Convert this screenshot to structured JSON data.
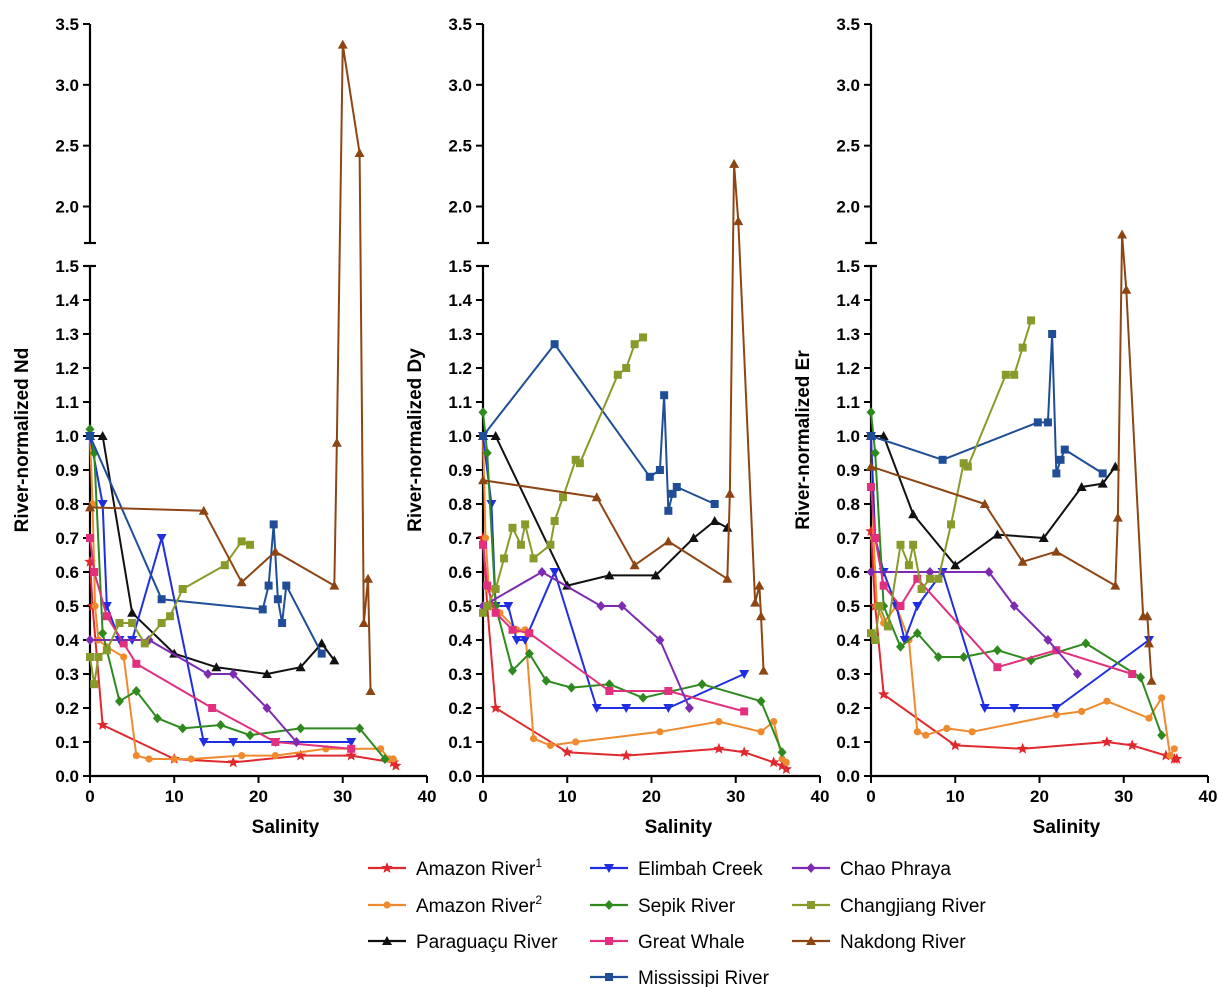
{
  "series_styles": [
    {
      "key": "amazon1",
      "color": "#e0292f",
      "marker": "star"
    },
    {
      "key": "amazon2",
      "color": "#ef8a2e",
      "marker": "circle"
    },
    {
      "key": "paraguacu",
      "color": "#111111",
      "marker": "triangle-up"
    },
    {
      "key": "elimbah",
      "color": "#1f2ee0",
      "marker": "triangle-down"
    },
    {
      "key": "sepik",
      "color": "#2e8a1e",
      "marker": "diamond"
    },
    {
      "key": "greatwhale",
      "color": "#e0307e",
      "marker": "square"
    },
    {
      "key": "mississippi",
      "color": "#1f4e96",
      "marker": "square"
    },
    {
      "key": "chaophraya",
      "color": "#7d2bb0",
      "marker": "diamond"
    },
    {
      "key": "changjiang",
      "color": "#8a9a2a",
      "marker": "square"
    },
    {
      "key": "nakdong",
      "color": "#8e4514",
      "marker": "triangle-up"
    }
  ],
  "legend": {
    "items": [
      {
        "key": "amazon1",
        "label": "Amazon River",
        "sup": "1"
      },
      {
        "key": "amazon2",
        "label": "Amazon River",
        "sup": "2"
      },
      {
        "key": "paraguacu",
        "label": "Paraguaçu River",
        "sup": ""
      },
      {
        "key": "elimbah",
        "label": "Elimbah Creek",
        "sup": ""
      },
      {
        "key": "sepik",
        "label": "Sepik River",
        "sup": ""
      },
      {
        "key": "greatwhale",
        "label": "Great Whale",
        "sup": ""
      },
      {
        "key": "mississippi",
        "label": "Mississipi River",
        "sup": ""
      },
      {
        "key": "chaophraya",
        "label": "Chao Phraya",
        "sup": ""
      },
      {
        "key": "changjiang",
        "label": "Changjiang River",
        "sup": ""
      },
      {
        "key": "nakdong",
        "label": "Nakdong River",
        "sup": ""
      }
    ]
  },
  "chart_data": [
    {
      "type": "line",
      "xlabel": "Salinity",
      "ylabel": "River-normalized Nd",
      "xlim": [
        0,
        40
      ],
      "xticks": [
        "0",
        "10",
        "20",
        "30",
        "40"
      ],
      "ylim": [
        0,
        3.5
      ],
      "axis_break": [
        1.5,
        1.7
      ],
      "yticks": [
        "0.0",
        "0.1",
        "0.2",
        "0.3",
        "0.4",
        "0.5",
        "0.6",
        "0.7",
        "0.8",
        "0.9",
        "1.0",
        "1.1",
        "1.2",
        "1.3",
        "1.4",
        "1.5",
        "2.0",
        "2.5",
        "3.0",
        "3.5"
      ],
      "series": [
        {
          "name": "Amazon River1",
          "x": [
            0,
            0.3,
            1.5,
            10,
            17,
            25,
            31,
            36,
            36.3
          ],
          "y": [
            0.63,
            0.5,
            0.15,
            0.05,
            0.04,
            0.06,
            0.06,
            0.04,
            0.03
          ]
        },
        {
          "name": "Amazon River2",
          "x": [
            0,
            0.3,
            0.6,
            1,
            2,
            4,
            5.5,
            7,
            10,
            12,
            18,
            22,
            28,
            34.5,
            35.5,
            36
          ],
          "y": [
            1.0,
            0.8,
            0.5,
            0.4,
            0.38,
            0.35,
            0.06,
            0.05,
            0.05,
            0.05,
            0.06,
            0.06,
            0.08,
            0.08,
            0.05,
            0.05
          ]
        },
        {
          "name": "Paraguaçu River",
          "x": [
            0,
            1.5,
            5,
            10,
            15,
            21,
            25,
            27.5,
            29
          ],
          "y": [
            1.0,
            1.0,
            0.48,
            0.36,
            0.32,
            0.3,
            0.32,
            0.39,
            0.34
          ]
        },
        {
          "name": "Elimbah Creek",
          "x": [
            0,
            1.5,
            2,
            3.5,
            5,
            8.5,
            13.5,
            17,
            22,
            31
          ],
          "y": [
            1.0,
            0.8,
            0.5,
            0.4,
            0.4,
            0.7,
            0.1,
            0.1,
            0.1,
            0.1
          ]
        },
        {
          "name": "Sepik River",
          "x": [
            0,
            0.5,
            1.5,
            3.5,
            5.5,
            8,
            11,
            15.5,
            19,
            25,
            32,
            35
          ],
          "y": [
            1.02,
            0.95,
            0.42,
            0.22,
            0.25,
            0.17,
            0.14,
            0.15,
            0.12,
            0.14,
            0.14,
            0.05
          ]
        },
        {
          "name": "Great Whale",
          "x": [
            0,
            0.5,
            2,
            4,
            5.5,
            14.5,
            22,
            31
          ],
          "y": [
            0.7,
            0.6,
            0.47,
            0.39,
            0.33,
            0.2,
            0.1,
            0.08
          ]
        },
        {
          "name": "Mississippi River",
          "x": [
            0,
            8.5,
            20.5,
            21.2,
            21.8,
            22.3,
            22.8,
            23.3,
            27.5
          ],
          "y": [
            1.0,
            0.52,
            0.49,
            0.56,
            0.74,
            0.52,
            0.45,
            0.56,
            0.36
          ]
        },
        {
          "name": "Chao Phraya",
          "x": [
            0,
            7,
            14,
            17,
            21,
            24.5
          ],
          "y": [
            0.4,
            0.4,
            0.3,
            0.3,
            0.2,
            0.1
          ]
        },
        {
          "name": "Changjiang River",
          "x": [
            0,
            0.5,
            1,
            2,
            3.5,
            5,
            6.5,
            8.5,
            9.5,
            11,
            16,
            18,
            19
          ],
          "y": [
            0.35,
            0.27,
            0.35,
            0.37,
            0.45,
            0.45,
            0.39,
            0.45,
            0.47,
            0.55,
            0.62,
            0.69,
            0.68
          ]
        },
        {
          "name": "Nakdong River",
          "x": [
            0,
            13.5,
            18,
            22,
            29,
            29.3,
            30,
            32,
            32.5,
            33,
            33.3
          ],
          "y": [
            0.79,
            0.78,
            0.57,
            0.66,
            0.56,
            0.98,
            3.33,
            2.44,
            0.45,
            0.58,
            0.25
          ]
        }
      ]
    },
    {
      "type": "line",
      "xlabel": "Salinity",
      "ylabel": "River-normalized Dy",
      "xlim": [
        0,
        40
      ],
      "xticks": [
        "0",
        "10",
        "20",
        "30",
        "40"
      ],
      "ylim": [
        0,
        3.5
      ],
      "axis_break": [
        1.5,
        1.7
      ],
      "yticks": [
        "0.0",
        "0.1",
        "0.2",
        "0.3",
        "0.4",
        "0.5",
        "0.6",
        "0.7",
        "0.8",
        "0.9",
        "1.0",
        "1.1",
        "1.2",
        "1.3",
        "1.4",
        "1.5",
        "2.0",
        "2.5",
        "3.0",
        "3.5"
      ],
      "series": [
        {
          "name": "Amazon River1",
          "x": [
            0,
            0.5,
            1.5,
            10,
            17,
            28,
            31,
            34.5,
            35.5,
            36
          ],
          "y": [
            0.7,
            0.5,
            0.2,
            0.07,
            0.06,
            0.08,
            0.07,
            0.04,
            0.03,
            0.02
          ]
        },
        {
          "name": "Amazon River2",
          "x": [
            0,
            0.3,
            0.7,
            1,
            2,
            4,
            5,
            6,
            8,
            11,
            21,
            28,
            33,
            34.5,
            35.5,
            36
          ],
          "y": [
            1.0,
            0.7,
            0.55,
            0.5,
            0.48,
            0.43,
            0.43,
            0.11,
            0.09,
            0.1,
            0.13,
            0.16,
            0.13,
            0.16,
            0.05,
            0.04
          ]
        },
        {
          "name": "Paraguaçu River",
          "x": [
            0,
            1.5,
            10,
            15,
            20.5,
            25,
            27.5,
            29
          ],
          "y": [
            1.0,
            1.0,
            0.56,
            0.59,
            0.59,
            0.7,
            0.75,
            0.73
          ]
        },
        {
          "name": "Elimbah Creek",
          "x": [
            0,
            1,
            1.5,
            3,
            4,
            5,
            8.5,
            13.5,
            17,
            22,
            31
          ],
          "y": [
            1.0,
            0.8,
            0.5,
            0.5,
            0.4,
            0.4,
            0.6,
            0.2,
            0.2,
            0.2,
            0.3
          ]
        },
        {
          "name": "Sepik River",
          "x": [
            0,
            0.5,
            1.5,
            3.5,
            5.5,
            7.5,
            10.5,
            15,
            19,
            26,
            33,
            35.5
          ],
          "y": [
            1.07,
            0.95,
            0.5,
            0.31,
            0.36,
            0.28,
            0.26,
            0.27,
            0.23,
            0.27,
            0.22,
            0.07
          ]
        },
        {
          "name": "Great Whale",
          "x": [
            0,
            0.5,
            1.5,
            3.5,
            5.5,
            15,
            22,
            31
          ],
          "y": [
            0.68,
            0.56,
            0.48,
            0.43,
            0.42,
            0.25,
            0.25,
            0.19
          ]
        },
        {
          "name": "Mississippi River",
          "x": [
            0,
            8.5,
            19.8,
            21,
            21.5,
            22,
            22.5,
            23,
            27.5
          ],
          "y": [
            1.0,
            1.27,
            0.88,
            0.9,
            1.12,
            0.78,
            0.83,
            0.85,
            0.8
          ]
        },
        {
          "name": "Chao Phraya",
          "x": [
            0,
            7,
            14,
            16.5,
            21,
            24.5
          ],
          "y": [
            0.5,
            0.6,
            0.5,
            0.5,
            0.4,
            0.2
          ]
        },
        {
          "name": "Changjiang River",
          "x": [
            0,
            0.5,
            1.5,
            2.5,
            3.5,
            4.5,
            5,
            6,
            8,
            8.5,
            9.5,
            11,
            11.5,
            16,
            17,
            18,
            19
          ],
          "y": [
            0.48,
            0.5,
            0.55,
            0.64,
            0.73,
            0.68,
            0.74,
            0.64,
            0.68,
            0.75,
            0.82,
            0.93,
            0.92,
            1.18,
            1.2,
            1.27,
            1.29
          ]
        },
        {
          "name": "Nakdong River",
          "x": [
            0,
            13.5,
            18,
            22,
            29,
            29.3,
            29.8,
            30.3,
            32.3,
            32.8,
            33,
            33.3
          ],
          "y": [
            0.87,
            0.82,
            0.62,
            0.69,
            0.58,
            0.83,
            2.35,
            1.88,
            0.51,
            0.56,
            0.47,
            0.31
          ]
        }
      ]
    },
    {
      "type": "line",
      "xlabel": "Salinity",
      "ylabel": "River-normalized Er",
      "xlim": [
        0,
        40
      ],
      "xticks": [
        "0",
        "10",
        "20",
        "30",
        "40"
      ],
      "ylim": [
        0,
        3.5
      ],
      "axis_break": [
        1.5,
        1.7
      ],
      "yticks": [
        "0.0",
        "0.1",
        "0.2",
        "0.3",
        "0.4",
        "0.5",
        "0.6",
        "0.7",
        "0.8",
        "0.9",
        "1.0",
        "1.1",
        "1.2",
        "1.3",
        "1.4",
        "1.5",
        "2.0",
        "2.5",
        "3.0",
        "3.5"
      ],
      "series": [
        {
          "name": "Amazon River1",
          "x": [
            0,
            0.5,
            1.5,
            10,
            18,
            28,
            31,
            35,
            36,
            36.3
          ],
          "y": [
            0.72,
            0.5,
            0.24,
            0.09,
            0.08,
            0.1,
            0.09,
            0.06,
            0.05,
            0.05
          ]
        },
        {
          "name": "Amazon River2",
          "x": [
            0,
            0.3,
            0.7,
            1.5,
            3,
            4.5,
            5.5,
            6.5,
            9,
            12,
            22,
            25,
            28,
            33,
            34.5,
            35.5,
            36
          ],
          "y": [
            1.0,
            0.7,
            0.5,
            0.45,
            0.5,
            0.4,
            0.13,
            0.12,
            0.14,
            0.13,
            0.18,
            0.19,
            0.22,
            0.17,
            0.23,
            0.06,
            0.08
          ]
        },
        {
          "name": "Paraguaçu River",
          "x": [
            0,
            1.5,
            5,
            10,
            15,
            20.5,
            25,
            27.5,
            29
          ],
          "y": [
            1.0,
            1.0,
            0.77,
            0.62,
            0.71,
            0.7,
            0.85,
            0.86,
            0.91
          ]
        },
        {
          "name": "Elimbah Creek",
          "x": [
            0,
            0.5,
            1.5,
            3,
            4,
            5.5,
            8.5,
            13.5,
            17,
            22,
            33
          ],
          "y": [
            1.0,
            0.7,
            0.6,
            0.5,
            0.4,
            0.5,
            0.6,
            0.2,
            0.2,
            0.2,
            0.4
          ]
        },
        {
          "name": "Sepik River",
          "x": [
            0,
            0.5,
            1.5,
            3.5,
            5.5,
            8,
            11,
            15,
            19,
            25.5,
            32,
            34.5
          ],
          "y": [
            1.07,
            0.95,
            0.5,
            0.38,
            0.42,
            0.35,
            0.35,
            0.37,
            0.34,
            0.39,
            0.29,
            0.12
          ]
        },
        {
          "name": "Great Whale",
          "x": [
            0,
            0.5,
            1.5,
            3.5,
            5.5,
            15,
            22,
            31
          ],
          "y": [
            0.85,
            0.7,
            0.56,
            0.5,
            0.58,
            0.32,
            0.37,
            0.3
          ]
        },
        {
          "name": "Mississippi River",
          "x": [
            0,
            8.5,
            19.8,
            21,
            21.5,
            22,
            22.5,
            23,
            27.5
          ],
          "y": [
            1.0,
            0.93,
            1.04,
            1.04,
            1.3,
            0.89,
            0.93,
            0.96,
            0.89
          ]
        },
        {
          "name": "Chao Phraya",
          "x": [
            0,
            7,
            14,
            17,
            21,
            24.5
          ],
          "y": [
            0.6,
            0.6,
            0.6,
            0.5,
            0.4,
            0.3
          ]
        },
        {
          "name": "Changjiang River",
          "x": [
            0,
            0.5,
            1,
            2,
            3.5,
            4.5,
            5,
            6,
            7,
            8,
            9.5,
            11,
            11.5,
            16,
            17,
            18,
            19
          ],
          "y": [
            0.42,
            0.4,
            0.5,
            0.44,
            0.68,
            0.62,
            0.68,
            0.55,
            0.58,
            0.58,
            0.74,
            0.92,
            0.91,
            1.18,
            1.18,
            1.26,
            1.34
          ]
        },
        {
          "name": "Nakdong River",
          "x": [
            0,
            13.5,
            18,
            22,
            29,
            29.3,
            29.8,
            30.3,
            32.3,
            32.8,
            33,
            33.3
          ],
          "y": [
            0.91,
            0.8,
            0.63,
            0.66,
            0.56,
            0.76,
            1.77,
            1.43,
            0.47,
            0.47,
            0.39,
            0.28
          ]
        }
      ]
    }
  ]
}
